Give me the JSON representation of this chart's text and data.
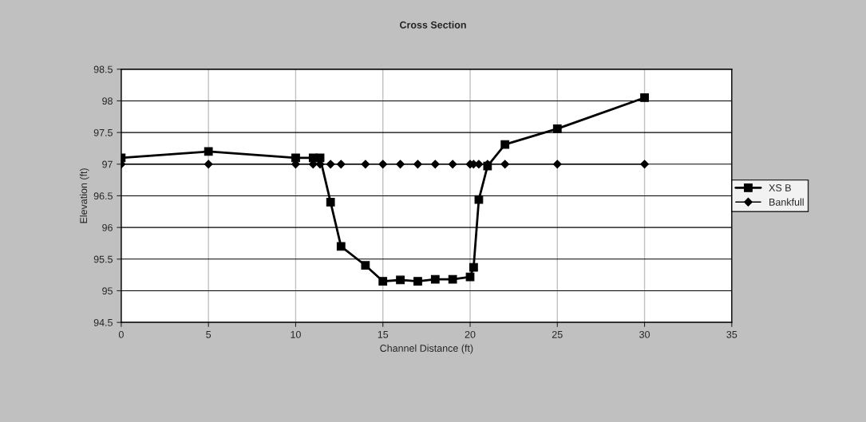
{
  "chart_data": {
    "type": "line",
    "title": "Cross Section",
    "xlabel": "Channel Distance (ft)",
    "ylabel": "Elevation (ft)",
    "series": [
      {
        "name": "XS B",
        "color": "#000000",
        "marker": "square",
        "x": [
          0,
          5,
          10,
          11,
          11.4,
          12,
          12.6,
          14,
          15,
          16,
          17,
          18,
          19,
          20,
          20.2,
          20.5,
          21,
          22,
          25,
          30
        ],
        "values": [
          97.1,
          97.2,
          97.1,
          97.1,
          97.1,
          96.4,
          95.7,
          95.4,
          95.15,
          95.17,
          95.15,
          95.18,
          95.18,
          95.22,
          95.37,
          96.44,
          96.97,
          97.31,
          97.56,
          98.05
        ]
      },
      {
        "name": "Bankfull",
        "color": "#000000",
        "marker": "diamond",
        "x": [
          0,
          5,
          10,
          11,
          11.4,
          12,
          12.6,
          14,
          15,
          16,
          17,
          18,
          19,
          20,
          20.2,
          20.5,
          21,
          22,
          25,
          30
        ],
        "values": [
          97,
          97,
          97,
          97,
          97,
          97,
          97,
          97,
          97,
          97,
          97,
          97,
          97,
          97,
          97,
          97,
          97,
          97,
          97,
          97
        ]
      }
    ],
    "xlim": [
      0,
      35
    ],
    "xticks": [
      0,
      5,
      10,
      15,
      20,
      25,
      30,
      35
    ],
    "ylim": [
      94.5,
      98.5
    ],
    "yticks": [
      94.5,
      95,
      95.5,
      96,
      96.5,
      97,
      97.5,
      98,
      98.5
    ],
    "grid": true,
    "legend": "right"
  }
}
